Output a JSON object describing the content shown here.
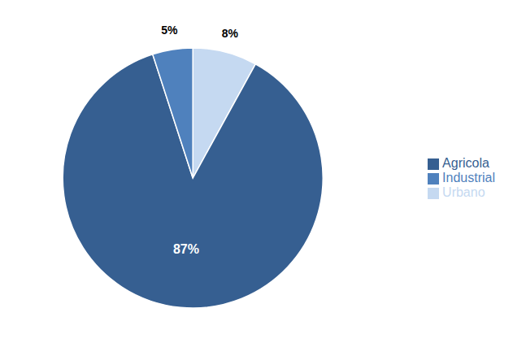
{
  "chart_data": {
    "type": "pie",
    "categories": [
      "Urbano",
      "Agricola",
      "Industrial"
    ],
    "values": [
      8,
      87,
      5
    ],
    "value_labels": [
      "8%",
      "87%",
      "5%"
    ],
    "colors": [
      "#C5D9F1",
      "#365F91",
      "#4F81BD"
    ],
    "data_labels": true,
    "legend": "right"
  }
}
